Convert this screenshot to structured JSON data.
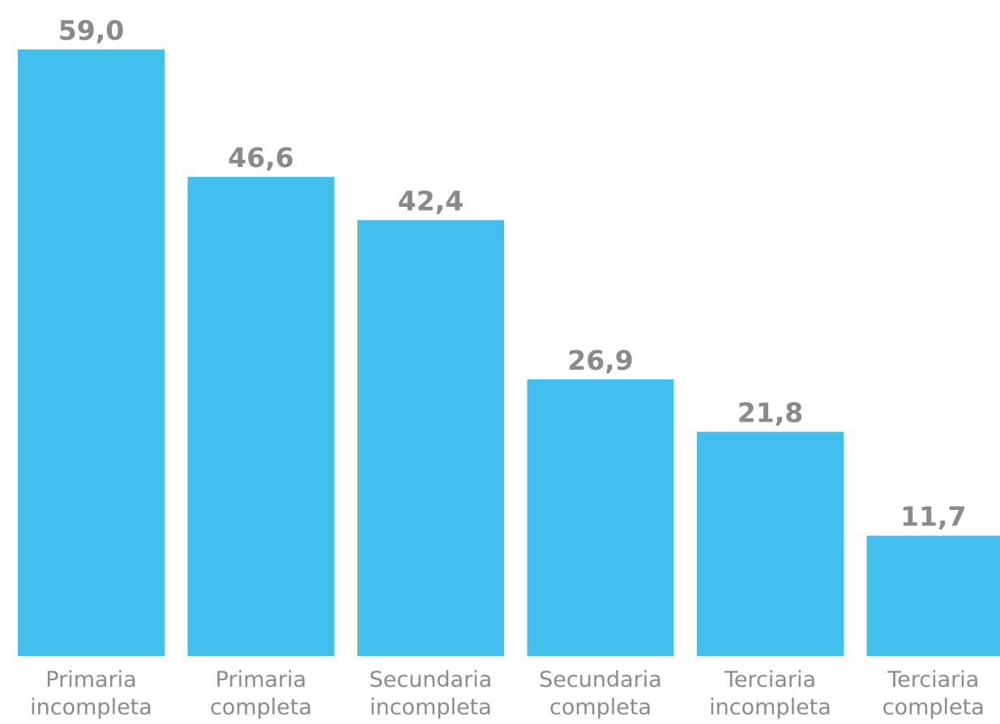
{
  "chart_data": {
    "type": "bar",
    "categories": [
      [
        "Primaria",
        "incompleta"
      ],
      [
        "Primaria",
        "completa"
      ],
      [
        "Secundaria",
        "incompleta"
      ],
      [
        "Secundaria",
        "completa"
      ],
      [
        "Terciaria",
        "incompleta"
      ],
      [
        "Terciaria",
        "completa"
      ]
    ],
    "values": [
      59.0,
      46.6,
      42.4,
      26.9,
      21.8,
      11.7
    ],
    "value_labels": [
      "59,0",
      "46,6",
      "42,4",
      "26,9",
      "21,8",
      "11,7"
    ],
    "title": "",
    "xlabel": "",
    "ylabel": "",
    "ylim": [
      0,
      59.0
    ],
    "grid": false,
    "legend": "none",
    "bar_color": "#43bfee",
    "label_color": "#8a8a8a"
  }
}
